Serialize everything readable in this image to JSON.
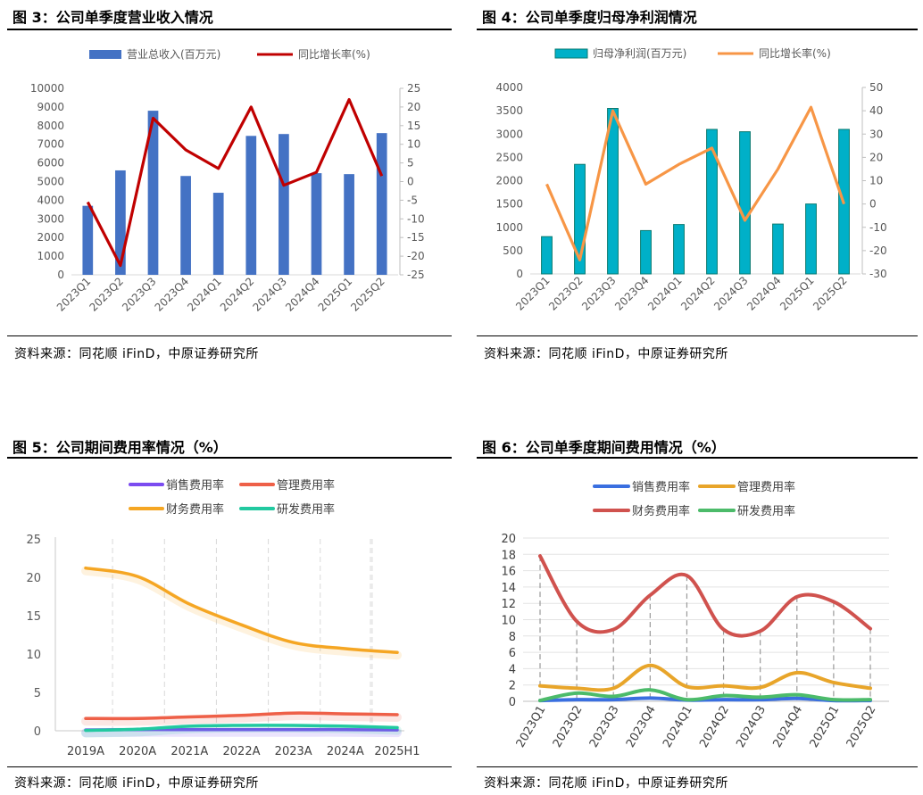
{
  "charts": [
    {
      "title": "图 3：公司单季度营业收入情况",
      "source": "资料来源：同花顺 iFinD，中原证券研究所",
      "chart_data": {
        "type": "bar+line",
        "categories": [
          "2023Q1",
          "2023Q2",
          "2023Q3",
          "2023Q4",
          "2024Q1",
          "2024Q2",
          "2024Q3",
          "2024Q4",
          "2025Q1",
          "2025Q2"
        ],
        "series": [
          {
            "name": "营业总收入(百万元)",
            "type": "bar",
            "axis": "left",
            "color": "#4472C4",
            "values": [
              3700,
              5600,
              8800,
              5300,
              4400,
              7450,
              7550,
              5450,
              5400,
              7600
            ]
          },
          {
            "name": "同比增长率(%)",
            "type": "line",
            "axis": "right",
            "color": "#C00000",
            "values": [
              -5.5,
              -22.5,
              17,
              8.5,
              3.5,
              20,
              -1,
              2.5,
              22,
              1.5
            ]
          }
        ],
        "ylim_left": [
          0,
          10000
        ],
        "yticks_left": [
          0,
          1000,
          2000,
          3000,
          4000,
          5000,
          6000,
          7000,
          8000,
          9000,
          10000
        ],
        "ylim_right": [
          -25,
          25
        ],
        "yticks_right": [
          -25,
          -20,
          -15,
          -10,
          -5,
          0,
          5,
          10,
          15,
          20,
          25
        ]
      }
    },
    {
      "title": "图 4：公司单季度归母净利润情况",
      "source": "资料来源：同花顺 iFinD，中原证券研究所",
      "chart_data": {
        "type": "bar+line",
        "categories": [
          "2023Q1",
          "2023Q2",
          "2023Q3",
          "2023Q4",
          "2024Q1",
          "2024Q2",
          "2024Q3",
          "2024Q4",
          "2025Q1",
          "2025Q2"
        ],
        "series": [
          {
            "name": "归母净利润(百万元)",
            "type": "bar",
            "axis": "left",
            "color": "#00B0C8",
            "values": [
              800,
              2350,
              3550,
              930,
              1060,
              3100,
              3050,
              1070,
              1500,
              3100
            ]
          },
          {
            "name": "同比增长率(%)",
            "type": "line",
            "axis": "right",
            "color": "#F79646",
            "values": [
              8.5,
              -24,
              40,
              8.5,
              17,
              24,
              -7,
              15,
              41.5,
              0
            ]
          }
        ],
        "ylim_left": [
          0,
          4000
        ],
        "yticks_left": [
          0,
          500,
          1000,
          1500,
          2000,
          2500,
          3000,
          3500,
          4000
        ],
        "ylim_right": [
          -30,
          50
        ],
        "yticks_right": [
          -30,
          -20,
          -10,
          0,
          10,
          20,
          30,
          40,
          50
        ]
      }
    },
    {
      "title": "图 5：公司期间费用率情况（%）",
      "source": "资料来源：同花顺 iFinD，中原证券研究所",
      "chart_data": {
        "type": "line",
        "categories": [
          "2019A",
          "2020A",
          "2021A",
          "2022A",
          "2023A",
          "2024A",
          "2025H1"
        ],
        "series": [
          {
            "name": "销售费用率",
            "color": "#7B4CF0",
            "values": [
              0.1,
              0.15,
              0.15,
              0.15,
              0.15,
              0.15,
              0.1
            ]
          },
          {
            "name": "管理费用率",
            "color": "#EE6048",
            "values": [
              1.6,
              1.6,
              1.8,
              2.0,
              2.3,
              2.2,
              2.1
            ]
          },
          {
            "name": "财务费用率",
            "color": "#F5A623",
            "values": [
              21.2,
              20.1,
              16.5,
              13.8,
              11.5,
              10.7,
              10.2
            ]
          },
          {
            "name": "研发费用率",
            "color": "#22C9A0",
            "values": [
              0.05,
              0.2,
              0.6,
              0.7,
              0.7,
              0.6,
              0.4
            ]
          }
        ],
        "ylim": [
          0,
          25
        ],
        "yticks": [
          0,
          5,
          10,
          15,
          20,
          25
        ]
      }
    },
    {
      "title": "图 6：公司单季度期间费用情况（%）",
      "source": "资料来源：同花顺 iFinD，中原证券研究所",
      "chart_data": {
        "type": "line",
        "categories": [
          "2023Q1",
          "2023Q2",
          "2023Q3",
          "2023Q4",
          "2024Q1",
          "2024Q2",
          "2024Q3",
          "2024Q4",
          "2025Q1",
          "2025Q2"
        ],
        "series": [
          {
            "name": "销售费用率",
            "color": "#3A6FE0",
            "values": [
              0.1,
              0.2,
              0.2,
              0.4,
              0.15,
              0.2,
              0.2,
              0.35,
              0.1,
              0.1
            ]
          },
          {
            "name": "管理费用率",
            "color": "#E8A52A",
            "values": [
              1.9,
              1.6,
              1.6,
              4.4,
              1.8,
              1.9,
              1.7,
              3.5,
              2.3,
              1.6
            ]
          },
          {
            "name": "财务费用率",
            "color": "#D0524E",
            "values": [
              17.8,
              9.8,
              8.8,
              13.0,
              15.4,
              8.8,
              8.6,
              12.8,
              12.2,
              8.9
            ]
          },
          {
            "name": "研发费用率",
            "color": "#4CBB6A",
            "values": [
              0.1,
              1.0,
              0.6,
              1.4,
              0.2,
              0.7,
              0.5,
              0.8,
              0.2,
              0.2
            ]
          }
        ],
        "ylim": [
          0,
          20
        ],
        "yticks": [
          0,
          2,
          4,
          6,
          8,
          10,
          12,
          14,
          16,
          18,
          20
        ]
      }
    }
  ]
}
